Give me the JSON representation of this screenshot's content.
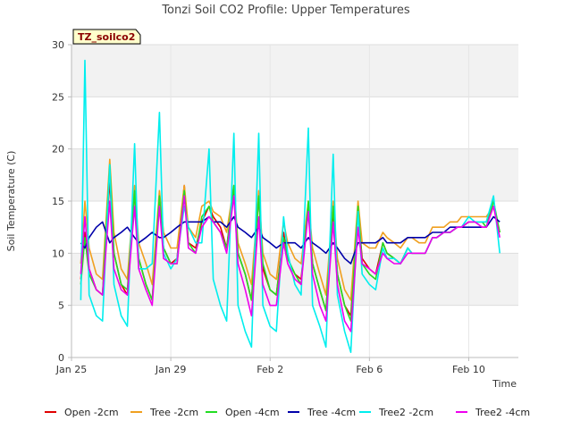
{
  "chart_data": {
    "type": "line",
    "title": "Tonzi Soil CO2 Profile: Upper Temperatures",
    "site_tag": "TZ_soilco2",
    "xlabel": "Time",
    "ylabel": "Soil Temperature (C)",
    "xlim": [
      "2016-01-25",
      "2016-02-12"
    ],
    "ylim": [
      0,
      30
    ],
    "yticks": [
      0,
      5,
      10,
      15,
      20,
      25,
      30
    ],
    "xticks": [
      {
        "value": "2016-01-25",
        "label": "Jan 25"
      },
      {
        "value": "2016-01-29",
        "label": "Jan 29"
      },
      {
        "value": "2016-02-02",
        "label": "Feb 2"
      },
      {
        "value": "2016-02-06",
        "label": "Feb 6"
      },
      {
        "value": "2016-02-10",
        "label": "Feb 10"
      }
    ],
    "grid": true,
    "legend_position": "bottom",
    "x": [
      "2016-01-25 09:00",
      "2016-01-25 13:00",
      "2016-01-25 17:00",
      "2016-01-26 00:00",
      "2016-01-26 06:00",
      "2016-01-26 13:00",
      "2016-01-26 17:00",
      "2016-01-27 00:00",
      "2016-01-27 06:00",
      "2016-01-27 13:00",
      "2016-01-27 17:00",
      "2016-01-28 00:00",
      "2016-01-28 06:00",
      "2016-01-28 13:00",
      "2016-01-28 17:00",
      "2016-01-29 00:00",
      "2016-01-29 06:00",
      "2016-01-29 13:00",
      "2016-01-29 17:00",
      "2016-01-30 00:00",
      "2016-01-30 06:00",
      "2016-01-30 13:00",
      "2016-01-30 17:00",
      "2016-01-31 00:00",
      "2016-01-31 06:00",
      "2016-01-31 13:00",
      "2016-01-31 17:00",
      "2016-02-01 00:00",
      "2016-02-01 06:00",
      "2016-02-01 13:00",
      "2016-02-01 17:00",
      "2016-02-02 00:00",
      "2016-02-02 06:00",
      "2016-02-02 13:00",
      "2016-02-02 17:00",
      "2016-02-03 00:00",
      "2016-02-03 06:00",
      "2016-02-03 13:00",
      "2016-02-03 17:00",
      "2016-02-04 00:00",
      "2016-02-04 06:00",
      "2016-02-04 13:00",
      "2016-02-04 17:00",
      "2016-02-05 00:00",
      "2016-02-05 06:00",
      "2016-02-05 13:00",
      "2016-02-05 17:00",
      "2016-02-06 00:00",
      "2016-02-06 06:00",
      "2016-02-06 13:00",
      "2016-02-06 17:00",
      "2016-02-07 00:00",
      "2016-02-07 06:00",
      "2016-02-07 13:00",
      "2016-02-07 17:00",
      "2016-02-08 00:00",
      "2016-02-08 06:00",
      "2016-02-08 13:00",
      "2016-02-08 17:00",
      "2016-02-09 00:00",
      "2016-02-09 06:00",
      "2016-02-09 13:00",
      "2016-02-09 17:00",
      "2016-02-10 00:00",
      "2016-02-10 06:00",
      "2016-02-10 13:00",
      "2016-02-10 17:00",
      "2016-02-11 00:00",
      "2016-02-11 06:00"
    ],
    "series": [
      {
        "name": "Open -2cm",
        "color": "#e00000",
        "values": [
          7.5,
          12.0,
          8.5,
          6.5,
          6.0,
          17.0,
          10.0,
          7.0,
          6.0,
          16.0,
          9.5,
          7.0,
          5.5,
          15.0,
          10.5,
          9.0,
          9.5,
          16.5,
          11.0,
          10.5,
          13.0,
          14.5,
          13.5,
          12.5,
          10.5,
          16.0,
          10.0,
          8.0,
          5.5,
          15.5,
          8.5,
          6.5,
          6.0,
          12.0,
          9.5,
          8.0,
          7.5,
          14.5,
          9.0,
          6.5,
          4.5,
          14.0,
          8.0,
          5.0,
          4.0,
          14.0,
          9.5,
          8.5,
          8.0,
          11.0,
          10.0,
          9.5,
          9.0,
          10.5,
          10.0,
          10.0,
          10.0,
          11.5,
          11.5,
          12.0,
          12.0,
          12.5,
          12.5,
          13.0,
          13.0,
          13.0,
          13.0,
          14.5,
          12.0
        ]
      },
      {
        "name": "Tree -2cm",
        "color": "#f0a020",
        "values": [
          9.0,
          15.0,
          10.5,
          8.0,
          7.5,
          19.0,
          12.0,
          8.5,
          7.5,
          16.5,
          11.0,
          9.0,
          7.0,
          16.0,
          12.0,
          10.5,
          10.5,
          16.5,
          12.5,
          11.5,
          14.5,
          15.0,
          14.0,
          13.5,
          12.0,
          16.5,
          11.0,
          9.0,
          7.0,
          16.0,
          10.0,
          8.0,
          7.5,
          13.0,
          11.0,
          9.5,
          9.0,
          15.0,
          10.5,
          8.0,
          6.0,
          15.0,
          9.5,
          6.5,
          5.5,
          15.0,
          11.0,
          10.5,
          10.5,
          12.0,
          11.5,
          11.0,
          10.5,
          11.5,
          11.5,
          11.0,
          11.0,
          12.5,
          12.5,
          12.5,
          13.0,
          13.0,
          13.5,
          13.5,
          13.5,
          13.5,
          13.5,
          14.5,
          12.0
        ]
      },
      {
        "name": "Open -4cm",
        "color": "#22dd22",
        "values": [
          7.0,
          11.5,
          8.0,
          6.5,
          6.0,
          18.5,
          10.0,
          7.0,
          6.5,
          16.0,
          9.5,
          7.0,
          5.5,
          15.5,
          10.5,
          9.0,
          9.0,
          16.0,
          11.0,
          10.0,
          13.5,
          14.5,
          13.0,
          12.0,
          10.5,
          16.5,
          10.0,
          8.0,
          5.5,
          15.5,
          9.0,
          6.5,
          6.0,
          11.5,
          9.5,
          8.0,
          7.0,
          15.0,
          9.0,
          6.5,
          4.5,
          14.5,
          8.0,
          5.0,
          3.5,
          14.5,
          9.0,
          8.0,
          7.5,
          11.0,
          10.0,
          9.5,
          9.0,
          10.5,
          10.0,
          10.0,
          10.0,
          11.5,
          11.5,
          12.0,
          12.0,
          12.5,
          12.5,
          13.0,
          13.0,
          13.0,
          12.5,
          15.0,
          12.0
        ]
      },
      {
        "name": "Tree -4cm",
        "color": "#0000aa",
        "values": [
          11.0,
          10.5,
          11.5,
          12.5,
          13.0,
          11.0,
          11.5,
          12.0,
          12.5,
          11.5,
          11.0,
          11.5,
          12.0,
          11.5,
          11.5,
          12.0,
          12.5,
          13.0,
          13.0,
          13.0,
          13.0,
          13.5,
          13.0,
          13.0,
          12.5,
          13.5,
          12.5,
          12.0,
          11.5,
          12.5,
          11.5,
          11.0,
          10.5,
          11.0,
          11.0,
          11.0,
          10.5,
          11.5,
          11.0,
          10.5,
          10.0,
          11.0,
          10.5,
          9.5,
          9.0,
          11.0,
          11.0,
          11.0,
          11.0,
          11.5,
          11.0,
          11.0,
          11.0,
          11.5,
          11.5,
          11.5,
          11.5,
          12.0,
          12.0,
          12.0,
          12.5,
          12.5,
          12.5,
          12.5,
          12.5,
          12.5,
          12.5,
          13.5,
          13.0
        ]
      },
      {
        "name": "Tree2 -2cm",
        "color": "#00eeee",
        "values": [
          5.5,
          28.5,
          6.0,
          4.0,
          3.5,
          18.5,
          7.0,
          4.0,
          3.0,
          20.5,
          8.5,
          8.5,
          9.0,
          23.5,
          10.0,
          8.5,
          9.5,
          14.5,
          12.5,
          11.0,
          11.0,
          20.0,
          7.5,
          5.0,
          3.5,
          21.5,
          5.0,
          2.5,
          1.0,
          21.5,
          5.0,
          3.0,
          2.5,
          13.5,
          10.0,
          7.0,
          6.0,
          22.0,
          5.0,
          3.0,
          1.0,
          19.5,
          6.0,
          2.5,
          0.5,
          14.0,
          8.0,
          7.0,
          6.5,
          10.5,
          9.5,
          9.5,
          9.0,
          10.5,
          10.0,
          10.0,
          10.0,
          11.5,
          11.5,
          12.0,
          12.0,
          12.5,
          12.5,
          13.5,
          13.0,
          13.0,
          13.0,
          15.5,
          10.0
        ]
      },
      {
        "name": "Tree2 -4cm",
        "color": "#ee00ee",
        "values": [
          8.0,
          13.5,
          8.5,
          6.5,
          6.0,
          15.0,
          8.5,
          6.5,
          6.0,
          14.5,
          8.5,
          6.5,
          5.0,
          14.5,
          9.5,
          9.0,
          9.0,
          15.5,
          10.5,
          10.0,
          12.5,
          13.5,
          13.0,
          12.0,
          10.0,
          15.5,
          9.0,
          6.5,
          4.0,
          13.5,
          7.0,
          5.0,
          5.0,
          11.0,
          9.0,
          7.5,
          7.0,
          14.0,
          8.0,
          5.0,
          3.5,
          13.0,
          7.0,
          3.5,
          2.5,
          12.5,
          9.0,
          8.5,
          8.0,
          10.0,
          9.5,
          9.0,
          9.0,
          10.0,
          10.0,
          10.0,
          10.0,
          11.5,
          11.5,
          12.0,
          12.0,
          12.5,
          12.5,
          13.0,
          13.0,
          12.5,
          12.5,
          14.5,
          11.5
        ]
      }
    ]
  }
}
